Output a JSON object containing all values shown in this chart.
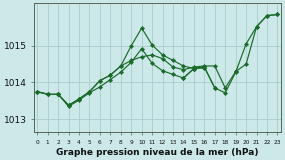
{
  "xlabel": "Graphe pression niveau de la mer (hPa)",
  "bg_color": "#cce8e8",
  "grid_color": "#aacccc",
  "line_color": "#1a6b2a",
  "hours": [
    0,
    1,
    2,
    3,
    4,
    5,
    6,
    7,
    8,
    9,
    10,
    11,
    12,
    13,
    14,
    15,
    16,
    17,
    18,
    19,
    20,
    21,
    22,
    23
  ],
  "lines": [
    [
      1013.75,
      1013.68,
      null,
      null,
      null,
      null,
      null,
      null,
      null,
      null,
      null,
      null,
      null,
      null,
      null,
      null,
      null,
      null,
      null,
      null,
      null,
      null,
      null,
      null
    ],
    [
      1013.75,
      1013.68,
      1013.68,
      1013.38,
      1013.55,
      1013.75,
      1014.05,
      1014.2,
      1014.45,
      1015.0,
      1015.48,
      1015.02,
      1014.75,
      1014.6,
      1014.45,
      1014.38,
      1014.4,
      null,
      null,
      null,
      null,
      null,
      null,
      null
    ],
    [
      null,
      null,
      1013.68,
      1013.35,
      1013.52,
      1013.72,
      1013.88,
      1014.08,
      1014.28,
      1014.55,
      1014.92,
      1014.52,
      1014.32,
      1014.22,
      1014.12,
      1014.38,
      1014.42,
      1013.85,
      null,
      null,
      null,
      null,
      null,
      null
    ],
    [
      null,
      null,
      null,
      null,
      null,
      null,
      null,
      null,
      null,
      null,
      null,
      null,
      null,
      null,
      1014.12,
      1014.38,
      1014.42,
      1013.85,
      1013.72,
      1014.28,
      1015.05,
      1015.52,
      1015.82,
      1015.85
    ]
  ],
  "line1_x": [
    0,
    1,
    2,
    3,
    4,
    5,
    6,
    7,
    8,
    9,
    10,
    11,
    12,
    13,
    14,
    15,
    16,
    17,
    18,
    19,
    20,
    21,
    22,
    23
  ],
  "line1_y": [
    1013.75,
    1013.68,
    1013.68,
    1013.38,
    1013.55,
    1013.75,
    1014.05,
    1014.2,
    1014.45,
    1014.6,
    1014.7,
    1014.75,
    1014.65,
    1014.42,
    1014.35,
    1014.42,
    1014.45,
    1014.45,
    1013.85,
    1014.3,
    1014.5,
    1015.52,
    1015.82,
    1015.85
  ],
  "yticks": [
    1013,
    1014,
    1015
  ],
  "ylim": [
    1012.65,
    1016.15
  ],
  "xlim": [
    -0.3,
    23.3
  ]
}
